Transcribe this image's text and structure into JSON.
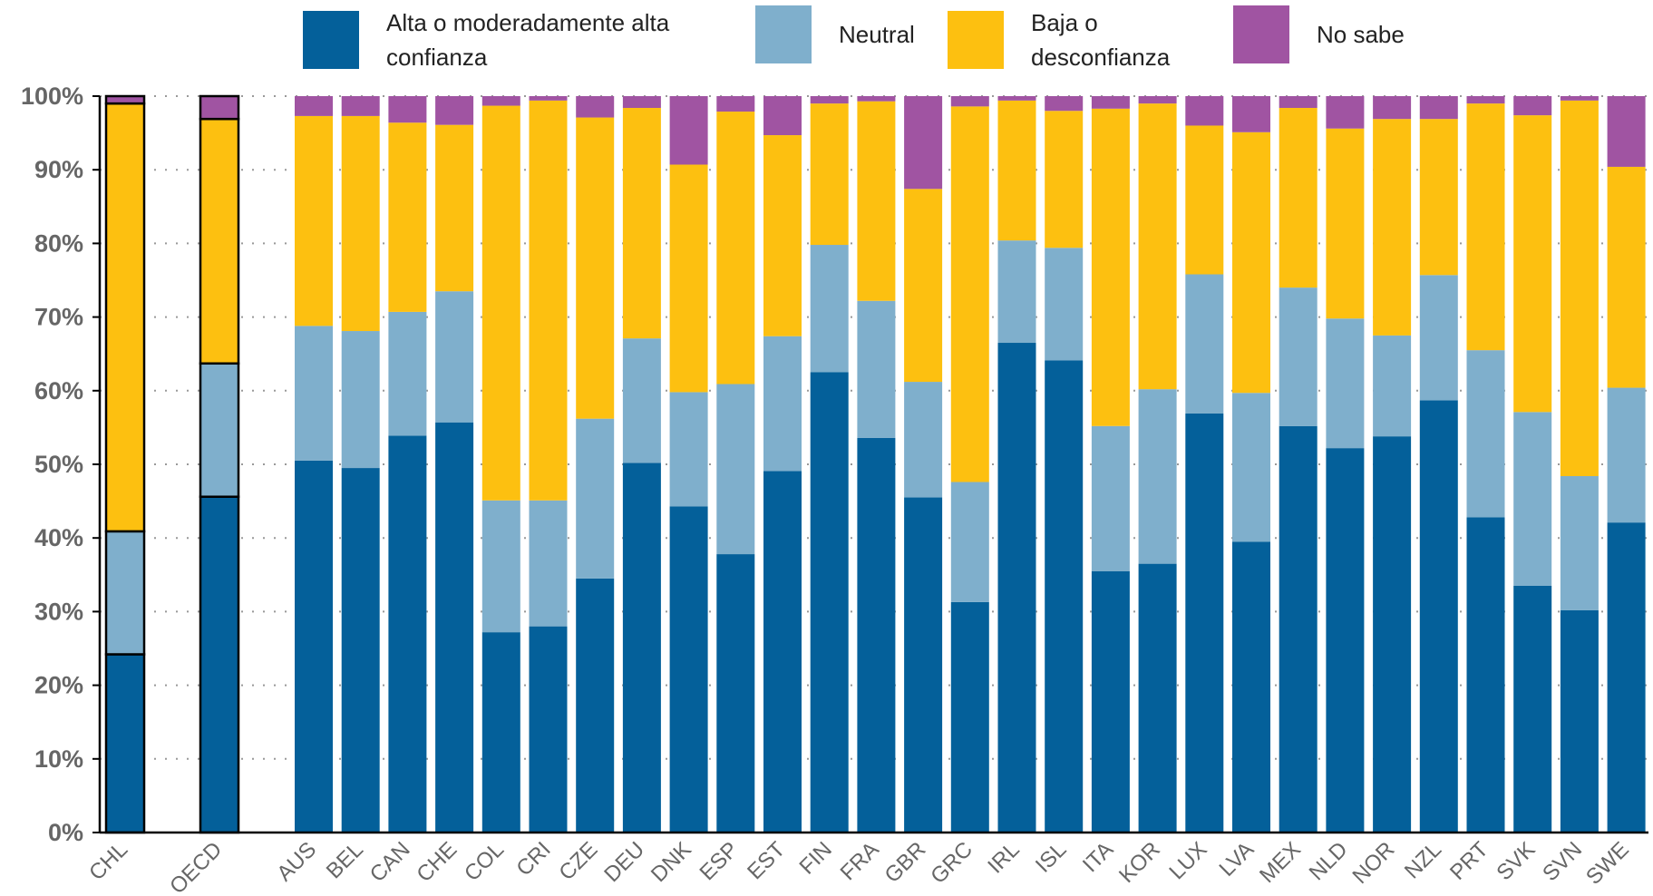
{
  "chart_data": {
    "type": "stacked_bar",
    "categories": [
      "CHL",
      "OECD",
      "AUS",
      "BEL",
      "CAN",
      "CHE",
      "COL",
      "CRI",
      "CZE",
      "DEU",
      "DNK",
      "ESP",
      "EST",
      "FIN",
      "FRA",
      "GBR",
      "GRC",
      "IRL",
      "ISL",
      "ITA",
      "KOR",
      "LUX",
      "LVA",
      "MEX",
      "NLD",
      "NOR",
      "NZL",
      "PRT",
      "SVK",
      "SVN",
      "SWE"
    ],
    "series": [
      {
        "name": "Alta o moderadamente alta confianza",
        "color": "#04609a",
        "values": [
          24.2,
          45.6,
          50.5,
          49.5,
          53.9,
          55.7,
          27.2,
          28.0,
          34.5,
          50.2,
          44.3,
          37.8,
          49.1,
          62.5,
          53.6,
          45.5,
          31.3,
          66.5,
          64.1,
          35.5,
          36.5,
          56.9,
          39.5,
          55.2,
          52.2,
          53.8,
          58.7,
          42.8,
          33.5,
          30.2,
          42.1
        ]
      },
      {
        "name": "Neutral",
        "color": "#7fafcc",
        "values": [
          16.7,
          18.1,
          18.3,
          18.6,
          16.8,
          17.8,
          17.9,
          17.1,
          21.7,
          16.9,
          15.5,
          23.1,
          18.3,
          17.3,
          18.6,
          15.7,
          16.3,
          13.9,
          15.3,
          19.7,
          23.7,
          18.9,
          20.2,
          18.8,
          17.6,
          13.7,
          17.0,
          22.7,
          23.6,
          18.2,
          18.3
        ]
      },
      {
        "name": "Baja o desconfianza",
        "color": "#fdc010",
        "values": [
          58.1,
          33.2,
          28.5,
          29.2,
          25.7,
          22.6,
          53.6,
          54.3,
          40.9,
          31.3,
          30.9,
          37.0,
          27.3,
          19.2,
          27.1,
          26.2,
          51.0,
          19.0,
          18.6,
          43.1,
          38.8,
          20.2,
          35.4,
          24.4,
          25.8,
          29.4,
          21.2,
          33.5,
          40.3,
          51.0,
          30.0
        ]
      },
      {
        "name": "No sabe",
        "color": "#a054a2",
        "values": [
          1.0,
          3.1,
          2.7,
          2.7,
          3.6,
          3.9,
          1.3,
          0.6,
          2.9,
          1.6,
          9.3,
          2.1,
          5.3,
          1.0,
          0.7,
          12.6,
          1.4,
          0.6,
          2.0,
          1.7,
          1.0,
          4.0,
          4.9,
          1.6,
          4.4,
          3.1,
          3.1,
          1.0,
          2.6,
          0.6,
          9.6
        ]
      }
    ],
    "ylim": [
      0,
      100
    ],
    "yticks": [
      {
        "value": 0,
        "label": "0%"
      },
      {
        "value": 10,
        "label": "10%"
      },
      {
        "value": 20,
        "label": "20%"
      },
      {
        "value": 30,
        "label": "30%"
      },
      {
        "value": 40,
        "label": "40%"
      },
      {
        "value": 50,
        "label": "50%"
      },
      {
        "value": 60,
        "label": "60%"
      },
      {
        "value": 70,
        "label": "70%"
      },
      {
        "value": 80,
        "label": "80%"
      },
      {
        "value": 90,
        "label": "90%"
      },
      {
        "value": 100,
        "label": "100%"
      }
    ],
    "grid": true
  }
}
